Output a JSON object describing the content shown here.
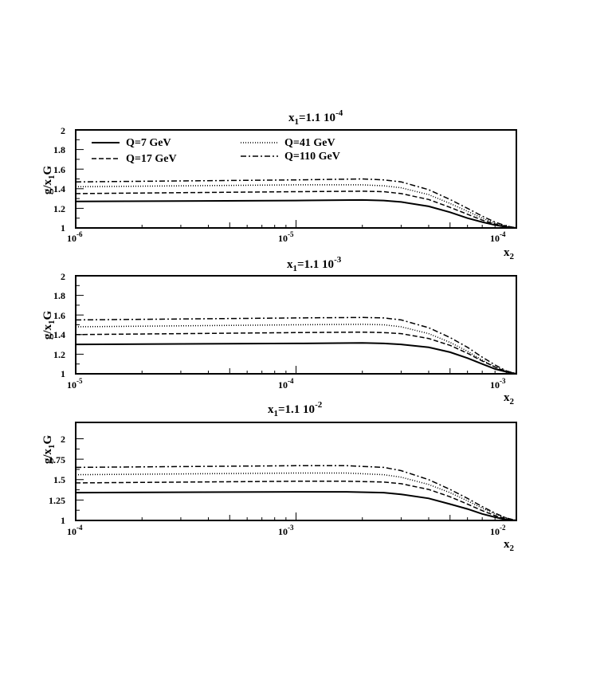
{
  "chart_data": [
    {
      "type": "line",
      "title": "x1=1.1 10-4",
      "title_main": "x",
      "title_sub": "1",
      "title_rest": "=1.1 10",
      "title_sup": "-4",
      "xlabel_main": "x",
      "xlabel_sub": "2",
      "ylabel_main": "g/x",
      "ylabel_sub": "1",
      "ylabel_rest": "G",
      "xscale": "log",
      "xlim": [
        1e-06,
        0.0001
      ],
      "ylim": [
        1,
        2
      ],
      "ytick_values": [
        1,
        1.2,
        1.4,
        1.6,
        1.8,
        2
      ],
      "yticks": [
        "1",
        "1.2",
        "1.4",
        "1.6",
        "1.8",
        "2"
      ],
      "xticks": [
        {
          "value": 1e-06,
          "base": "10",
          "exp": "-6"
        },
        {
          "value": 1e-05,
          "base": "10",
          "exp": "-5"
        },
        {
          "value": 0.0001,
          "base": "10",
          "exp": "-4"
        }
      ],
      "grid": false,
      "legend": "top",
      "series": [
        {
          "name": "Q=7 GeV",
          "style": "solid",
          "x": [
            1e-06,
            1e-05,
            2e-05,
            2.5e-05,
            3e-05,
            4e-05,
            5e-05,
            6e-05,
            7e-05,
            8e-05,
            9e-05,
            0.0001
          ],
          "y": [
            1.27,
            1.28,
            1.285,
            1.28,
            1.265,
            1.22,
            1.16,
            1.1,
            1.06,
            1.03,
            1.01,
            1.0
          ]
        },
        {
          "name": "Q=41 GeV",
          "style": "dotted",
          "x": [
            1e-06,
            1e-05,
            2e-05,
            2.5e-05,
            3e-05,
            4e-05,
            5e-05,
            6e-05,
            7e-05,
            8e-05,
            9e-05,
            0.0001
          ],
          "y": [
            1.42,
            1.44,
            1.44,
            1.43,
            1.41,
            1.34,
            1.25,
            1.17,
            1.1,
            1.05,
            1.02,
            1.0
          ]
        },
        {
          "name": "Q=17 GeV",
          "style": "dashed",
          "x": [
            1e-06,
            1e-05,
            2e-05,
            2.5e-05,
            3e-05,
            4e-05,
            5e-05,
            6e-05,
            7e-05,
            8e-05,
            9e-05,
            0.0001
          ],
          "y": [
            1.35,
            1.37,
            1.375,
            1.37,
            1.35,
            1.29,
            1.21,
            1.14,
            1.08,
            1.04,
            1.015,
            1.0
          ]
        },
        {
          "name": "Q=110 GeV",
          "style": "dashdot",
          "x": [
            1e-06,
            1e-05,
            2e-05,
            2.5e-05,
            3e-05,
            4e-05,
            5e-05,
            6e-05,
            7e-05,
            8e-05,
            9e-05,
            0.0001
          ],
          "y": [
            1.47,
            1.49,
            1.5,
            1.49,
            1.47,
            1.39,
            1.29,
            1.2,
            1.12,
            1.06,
            1.02,
            1.0
          ]
        }
      ]
    },
    {
      "type": "line",
      "title": "x1=1.1 10-3",
      "title_main": "x",
      "title_sub": "1",
      "title_rest": "=1.1 10",
      "title_sup": "-3",
      "xlabel_main": "x",
      "xlabel_sub": "2",
      "ylabel_main": "g/x",
      "ylabel_sub": "1",
      "ylabel_rest": "G",
      "xscale": "log",
      "xlim": [
        1e-05,
        0.001
      ],
      "ylim": [
        1,
        2
      ],
      "ytick_values": [
        1,
        1.2,
        1.4,
        1.6,
        1.8,
        2
      ],
      "yticks": [
        "1",
        "1.2",
        "1.4",
        "1.6",
        "1.8",
        "2"
      ],
      "xticks": [
        {
          "value": 1e-05,
          "base": "10",
          "exp": "-5"
        },
        {
          "value": 0.0001,
          "base": "10",
          "exp": "-4"
        },
        {
          "value": 0.001,
          "base": "10",
          "exp": "-3"
        }
      ],
      "grid": false,
      "series": [
        {
          "name": "Q=7 GeV",
          "style": "solid",
          "x": [
            1e-05,
            0.0001,
            0.0002,
            0.00025,
            0.0003,
            0.0004,
            0.0005,
            0.0006,
            0.0007,
            0.0008,
            0.0009,
            0.001
          ],
          "y": [
            1.3,
            1.31,
            1.315,
            1.31,
            1.3,
            1.27,
            1.22,
            1.16,
            1.1,
            1.05,
            1.02,
            1.0
          ]
        },
        {
          "name": "Q=41 GeV",
          "style": "dotted",
          "x": [
            1e-05,
            0.0001,
            0.0002,
            0.00025,
            0.0003,
            0.0004,
            0.0005,
            0.0006,
            0.0007,
            0.0008,
            0.0009,
            0.001
          ],
          "y": [
            1.48,
            1.5,
            1.505,
            1.5,
            1.48,
            1.41,
            1.32,
            1.23,
            1.14,
            1.07,
            1.03,
            1.0
          ]
        },
        {
          "name": "Q=17 GeV",
          "style": "dashed",
          "x": [
            1e-05,
            0.0001,
            0.0002,
            0.00025,
            0.0003,
            0.0004,
            0.0005,
            0.0006,
            0.0007,
            0.0008,
            0.0009,
            0.001
          ],
          "y": [
            1.4,
            1.42,
            1.425,
            1.42,
            1.41,
            1.36,
            1.29,
            1.21,
            1.13,
            1.07,
            1.02,
            1.0
          ]
        },
        {
          "name": "Q=110 GeV",
          "style": "dashdot",
          "x": [
            1e-05,
            0.0001,
            0.0002,
            0.00025,
            0.0003,
            0.0004,
            0.0005,
            0.0006,
            0.0007,
            0.0008,
            0.0009,
            0.001
          ],
          "y": [
            1.55,
            1.57,
            1.575,
            1.57,
            1.55,
            1.47,
            1.37,
            1.27,
            1.17,
            1.09,
            1.03,
            1.0
          ]
        }
      ]
    },
    {
      "type": "line",
      "title": "x1=1.1 10-2",
      "title_main": "x",
      "title_sub": "1",
      "title_rest": "=1.1 10",
      "title_sup": "-2",
      "xlabel_main": "x",
      "xlabel_sub": "2",
      "ylabel_main": "g/x",
      "ylabel_sub": "1",
      "ylabel_rest": "G",
      "xscale": "log",
      "xlim": [
        0.0001,
        0.01
      ],
      "ylim": [
        1,
        2.2
      ],
      "ytick_values": [
        1,
        1.25,
        1.5,
        1.75,
        2
      ],
      "yticks": [
        "1",
        "1.25",
        "1.5",
        "1.75",
        "2"
      ],
      "xticks": [
        {
          "value": 0.0001,
          "base": "10",
          "exp": "-4"
        },
        {
          "value": 0.001,
          "base": "10",
          "exp": "-3"
        },
        {
          "value": 0.01,
          "base": "10",
          "exp": "-2"
        }
      ],
      "grid": false,
      "series": [
        {
          "name": "Q=7 GeV",
          "style": "solid",
          "x": [
            0.0001,
            0.001,
            0.0017,
            0.0025,
            0.003,
            0.004,
            0.005,
            0.006,
            0.007,
            0.008,
            0.009,
            0.01
          ],
          "y": [
            1.34,
            1.35,
            1.35,
            1.34,
            1.32,
            1.27,
            1.2,
            1.14,
            1.08,
            1.04,
            1.01,
            1.0
          ]
        },
        {
          "name": "Q=41 GeV",
          "style": "dotted",
          "x": [
            0.0001,
            0.001,
            0.0017,
            0.0025,
            0.003,
            0.004,
            0.005,
            0.006,
            0.007,
            0.008,
            0.009,
            0.01
          ],
          "y": [
            1.56,
            1.58,
            1.58,
            1.56,
            1.53,
            1.44,
            1.34,
            1.24,
            1.15,
            1.08,
            1.03,
            1.0
          ]
        },
        {
          "name": "Q=17 GeV",
          "style": "dashed",
          "x": [
            0.0001,
            0.001,
            0.0017,
            0.0025,
            0.003,
            0.004,
            0.005,
            0.006,
            0.007,
            0.008,
            0.009,
            0.01
          ],
          "y": [
            1.46,
            1.48,
            1.48,
            1.47,
            1.45,
            1.38,
            1.29,
            1.2,
            1.12,
            1.06,
            1.02,
            1.0
          ]
        },
        {
          "name": "Q=110 GeV",
          "style": "dashdot",
          "x": [
            0.0001,
            0.001,
            0.0017,
            0.0025,
            0.003,
            0.004,
            0.005,
            0.006,
            0.007,
            0.008,
            0.009,
            0.01
          ],
          "y": [
            1.65,
            1.67,
            1.67,
            1.65,
            1.61,
            1.5,
            1.38,
            1.27,
            1.17,
            1.09,
            1.03,
            1.0
          ]
        }
      ]
    }
  ],
  "legend": {
    "entries": [
      {
        "label": "Q=7 GeV",
        "style": "solid"
      },
      {
        "label": "Q=41 GeV",
        "style": "dotted"
      },
      {
        "label": "Q=17 GeV",
        "style": "dashed"
      },
      {
        "label": "Q=110 GeV",
        "style": "dashdot"
      }
    ]
  }
}
